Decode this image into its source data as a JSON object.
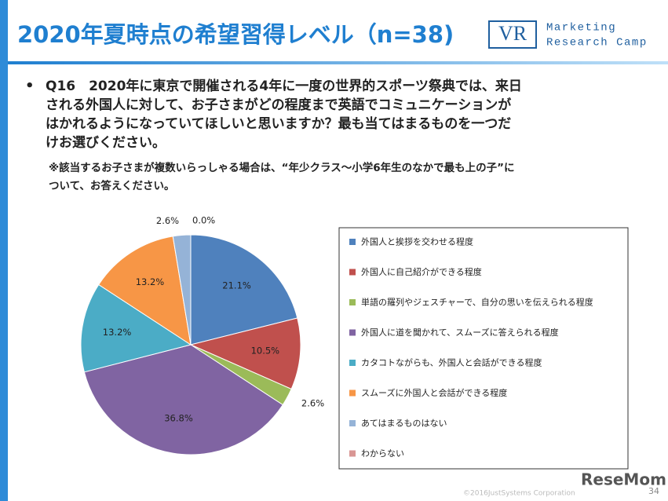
{
  "header": {
    "title": "2020年夏時点の希望習得レベル（n=38)"
  },
  "logo": {
    "mark": "VR",
    "line1": "Marketing",
    "line2": "Research Camp"
  },
  "question": {
    "bullet": "•",
    "lines": [
      "Q16　2020年に東京で開催される4年に一度の世界的スポーツ祭典では、来日",
      "される外国人に対して、お子さまがどの程度まで英語でコミュニケーションが",
      "はかれるようになっていてほしいと思いますか？最も当てはまるものを一つだ",
      "けお選びください。"
    ]
  },
  "note": {
    "lines": [
      "※該当するお子さまが複数いらっしゃる場合は、“年少クラス～小学6年生のなかで最も上の子”に",
      "ついて、お答えください。"
    ]
  },
  "chart_data": {
    "type": "pie",
    "categories": [
      "外国人と挨拶を交わせる程度",
      "外国人に自己紹介ができる程度",
      "単語の羅列やジェスチャーで、自分の思いを伝えられる程度",
      "外国人に道を聞かれて、スムーズに答えられる程度",
      "カタコトながらも、外国人と会話ができる程度",
      "スムーズに外国人と会話ができる程度",
      "あてはまるものはない",
      "わからない"
    ],
    "values": [
      21.1,
      10.5,
      2.6,
      36.8,
      13.2,
      13.2,
      2.6,
      0.0
    ],
    "value_labels": [
      "21.1%",
      "10.5%",
      "2.6%",
      "36.8%",
      "13.2%",
      "13.2%",
      "2.6%",
      "0.0%"
    ],
    "colors": [
      "#4f81bd",
      "#c0504d",
      "#9bbb59",
      "#8064a2",
      "#4bacc6",
      "#f79646",
      "#95b3d7",
      "#d99694"
    ]
  },
  "footer": {
    "copyright": "©2016JustSystems Corporation",
    "page": "34",
    "watermark": "ReseMom"
  }
}
